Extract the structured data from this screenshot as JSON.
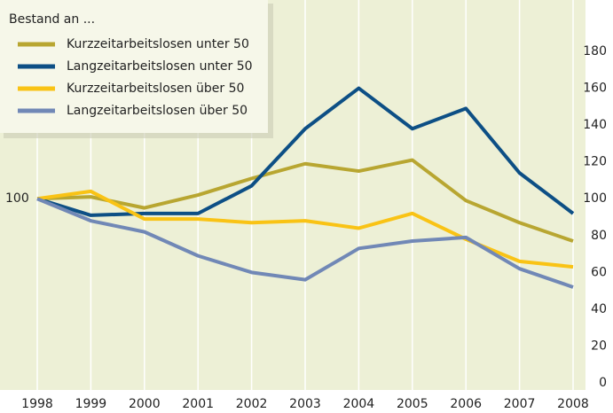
{
  "chart_data": {
    "type": "line",
    "legend_title": "Bestand an ...",
    "left_label": "100",
    "categories": [
      "1998",
      "1999",
      "2000",
      "2001",
      "2002",
      "2003",
      "2004",
      "2005",
      "2006",
      "2007",
      "2008"
    ],
    "series": [
      {
        "name": "Kurzzeitarbeitslosen unter 50",
        "color": "#b8a631",
        "values": [
          100,
          101,
          95,
          102,
          111,
          119,
          115,
          121,
          99,
          87,
          77
        ]
      },
      {
        "name": "Langzeitarbeitslosen unter 50",
        "color": "#0d4f85",
        "values": [
          100,
          91,
          92,
          92,
          107,
          138,
          160,
          138,
          149,
          114,
          92
        ]
      },
      {
        "name": "Kurzzeitarbeitslosen über 50",
        "color": "#f9c315",
        "values": [
          100,
          104,
          89,
          89,
          87,
          88,
          84,
          92,
          78,
          66,
          63
        ]
      },
      {
        "name": "Langzeitarbeitslosen über 50",
        "color": "#7188b6",
        "values": [
          100,
          88,
          82,
          69,
          60,
          56,
          73,
          77,
          79,
          62,
          52
        ]
      }
    ],
    "ylim": [
      0,
      180
    ],
    "yticks": [
      0,
      20,
      40,
      60,
      80,
      100,
      120,
      140,
      160,
      180
    ],
    "grid": true,
    "legend": "upper left"
  }
}
